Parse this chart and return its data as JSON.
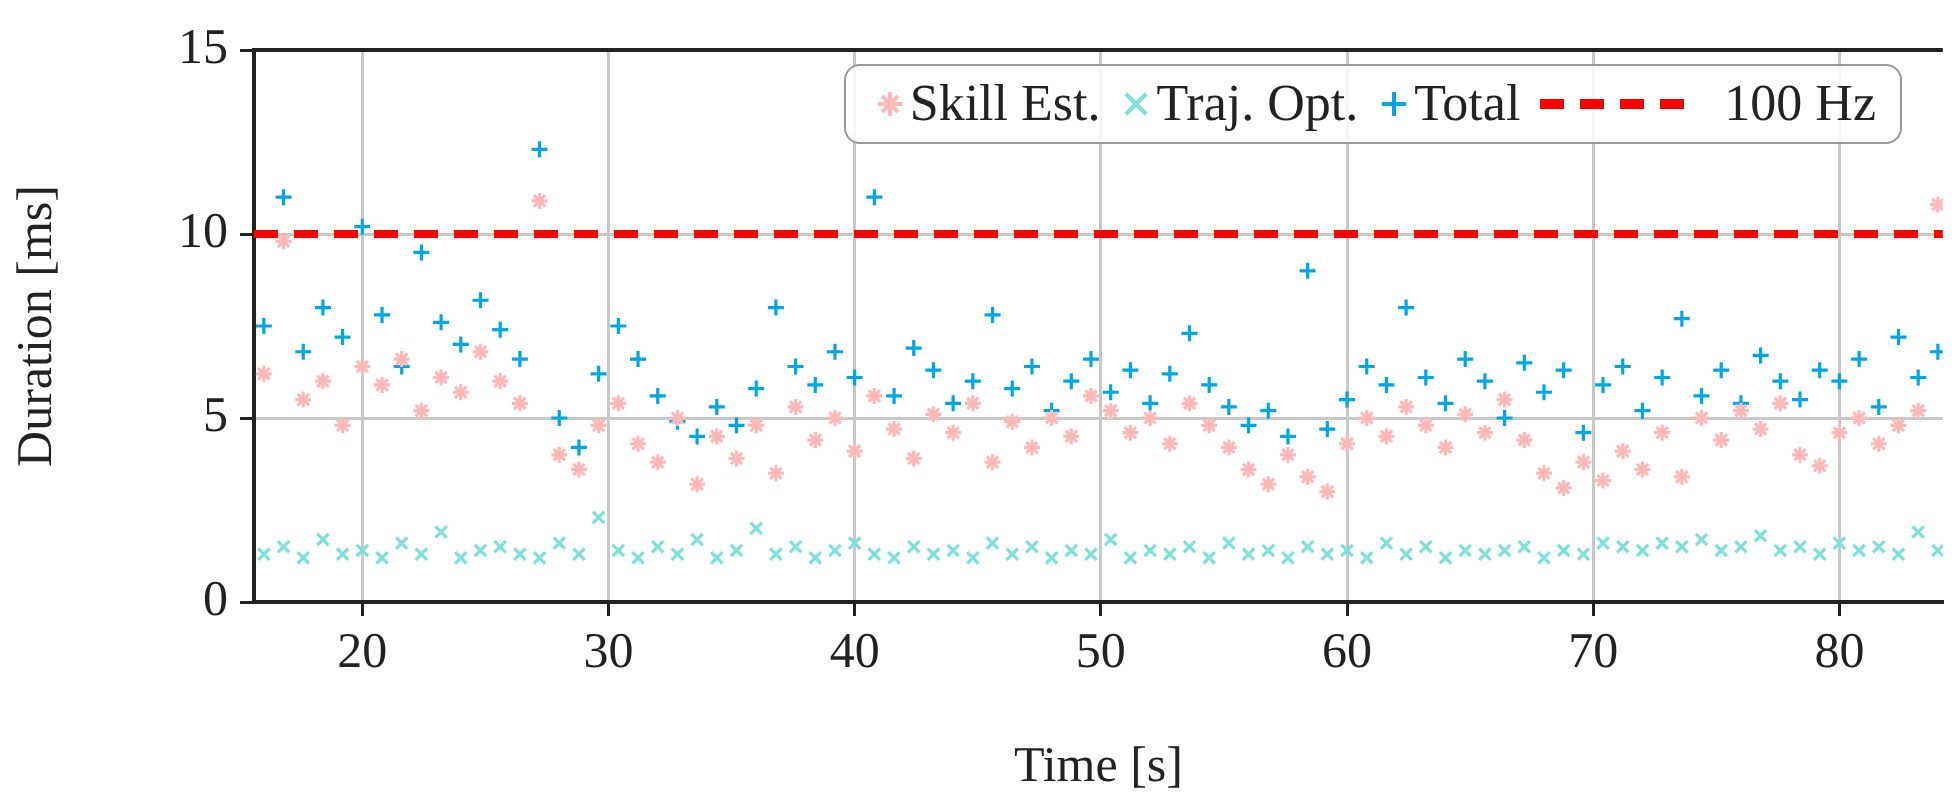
{
  "chart_data": {
    "type": "scatter",
    "xlabel": "Time [s]",
    "ylabel": "Duration [ms]",
    "x": [
      16.0,
      16.8,
      17.6,
      18.4,
      19.2,
      20.0,
      20.8,
      21.6,
      22.4,
      23.2,
      24.0,
      24.8,
      25.6,
      26.4,
      27.2,
      28.0,
      28.8,
      29.6,
      30.4,
      31.2,
      32.0,
      32.8,
      33.6,
      34.4,
      35.2,
      36.0,
      36.8,
      37.6,
      38.4,
      39.2,
      40.0,
      40.8,
      41.6,
      42.4,
      43.2,
      44.0,
      44.8,
      45.6,
      46.4,
      47.2,
      48.0,
      48.8,
      49.6,
      50.4,
      51.2,
      52.0,
      52.8,
      53.6,
      54.4,
      55.2,
      56.0,
      56.8,
      57.6,
      58.4,
      59.2,
      60.0,
      60.8,
      61.6,
      62.4,
      63.2,
      64.0,
      64.8,
      65.6,
      66.4,
      67.2,
      68.0,
      68.8,
      69.6,
      70.4,
      71.2,
      72.0,
      72.8,
      73.6,
      74.4,
      75.2,
      76.0,
      76.8,
      77.6,
      78.4,
      79.2,
      80.0,
      80.8,
      81.6,
      82.4,
      83.2,
      84.0
    ],
    "series": [
      {
        "name": "Skill Est.",
        "color": "#ffb8b8",
        "values": [
          6.2,
          9.8,
          5.5,
          6.0,
          4.8,
          6.4,
          5.9,
          6.6,
          5.2,
          6.1,
          5.7,
          6.8,
          6.0,
          5.4,
          10.9,
          4.0,
          3.6,
          4.8,
          5.4,
          4.3,
          3.8,
          5.0,
          3.2,
          4.5,
          3.9,
          4.8,
          3.5,
          5.3,
          4.4,
          5.0,
          4.1,
          5.6,
          4.7,
          3.9,
          5.1,
          4.6,
          5.4,
          3.8,
          4.9,
          4.2,
          5.0,
          4.5,
          5.6,
          5.2,
          4.6,
          5.0,
          4.3,
          5.4,
          4.8,
          4.2,
          3.6,
          3.2,
          4.0,
          3.4,
          3.0,
          4.3,
          5.0,
          4.5,
          5.3,
          4.8,
          4.2,
          5.1,
          4.6,
          5.5,
          4.4,
          3.5,
          3.1,
          3.8,
          3.3,
          4.1,
          3.6,
          4.6,
          3.4,
          5.0,
          4.4,
          5.2,
          4.7,
          5.4,
          4.0,
          3.7,
          4.6,
          5.0,
          4.3,
          4.8,
          5.2,
          10.8
        ]
      },
      {
        "name": "Traj. Opt.",
        "color": "#7fdfdb",
        "marker": "x",
        "values": [
          1.3,
          1.5,
          1.2,
          1.7,
          1.3,
          1.4,
          1.2,
          1.6,
          1.3,
          1.9,
          1.2,
          1.4,
          1.5,
          1.3,
          1.2,
          1.6,
          1.3,
          2.3,
          1.4,
          1.2,
          1.5,
          1.3,
          1.7,
          1.2,
          1.4,
          2.0,
          1.3,
          1.5,
          1.2,
          1.4,
          1.6,
          1.3,
          1.2,
          1.5,
          1.3,
          1.4,
          1.2,
          1.6,
          1.3,
          1.5,
          1.2,
          1.4,
          1.3,
          1.7,
          1.2,
          1.4,
          1.3,
          1.5,
          1.2,
          1.6,
          1.3,
          1.4,
          1.2,
          1.5,
          1.3,
          1.4,
          1.2,
          1.6,
          1.3,
          1.5,
          1.2,
          1.4,
          1.3,
          1.4,
          1.5,
          1.2,
          1.4,
          1.3,
          1.6,
          1.5,
          1.4,
          1.6,
          1.5,
          1.7,
          1.4,
          1.5,
          1.8,
          1.4,
          1.5,
          1.3,
          1.6,
          1.4,
          1.5,
          1.3,
          1.9,
          1.4
        ]
      },
      {
        "name": "Total",
        "color": "#00a6e6",
        "marker": "cross",
        "values": [
          7.5,
          11.0,
          6.8,
          8.0,
          7.2,
          10.2,
          7.8,
          6.4,
          9.5,
          7.6,
          7.0,
          8.2,
          7.4,
          6.6,
          12.3,
          5.0,
          4.2,
          6.2,
          7.5,
          6.6,
          5.6,
          4.9,
          4.5,
          5.3,
          4.8,
          5.8,
          8.0,
          6.4,
          5.9,
          6.8,
          6.1,
          11.0,
          5.6,
          6.9,
          6.3,
          5.4,
          6.0,
          7.8,
          5.8,
          6.4,
          5.2,
          6.0,
          6.6,
          5.7,
          6.3,
          5.4,
          6.2,
          7.3,
          5.9,
          5.3,
          4.8,
          5.2,
          4.5,
          9.0,
          4.7,
          5.5,
          6.4,
          5.9,
          8.0,
          6.1,
          5.4,
          6.6,
          6.0,
          5.0,
          6.5,
          5.7,
          6.3,
          4.6,
          5.9,
          6.4,
          5.2,
          6.1,
          7.7,
          5.6,
          6.3,
          5.4,
          6.7,
          6.0,
          5.5,
          6.3,
          6.0,
          6.6,
          5.3,
          7.2,
          6.1,
          6.8
        ]
      }
    ],
    "ref_lines": [
      {
        "axis": "y",
        "value": 10,
        "label": "100 Hz",
        "color": "#ff0000",
        "line_style": "dashed"
      }
    ],
    "xlim": [
      15.6,
      84.2
    ],
    "xticks": [
      20,
      30,
      40,
      50,
      60,
      70,
      80
    ],
    "ylim": [
      0,
      15
    ],
    "yticks": [
      0,
      5,
      10,
      15
    ],
    "grid": true,
    "legend": "top right"
  }
}
